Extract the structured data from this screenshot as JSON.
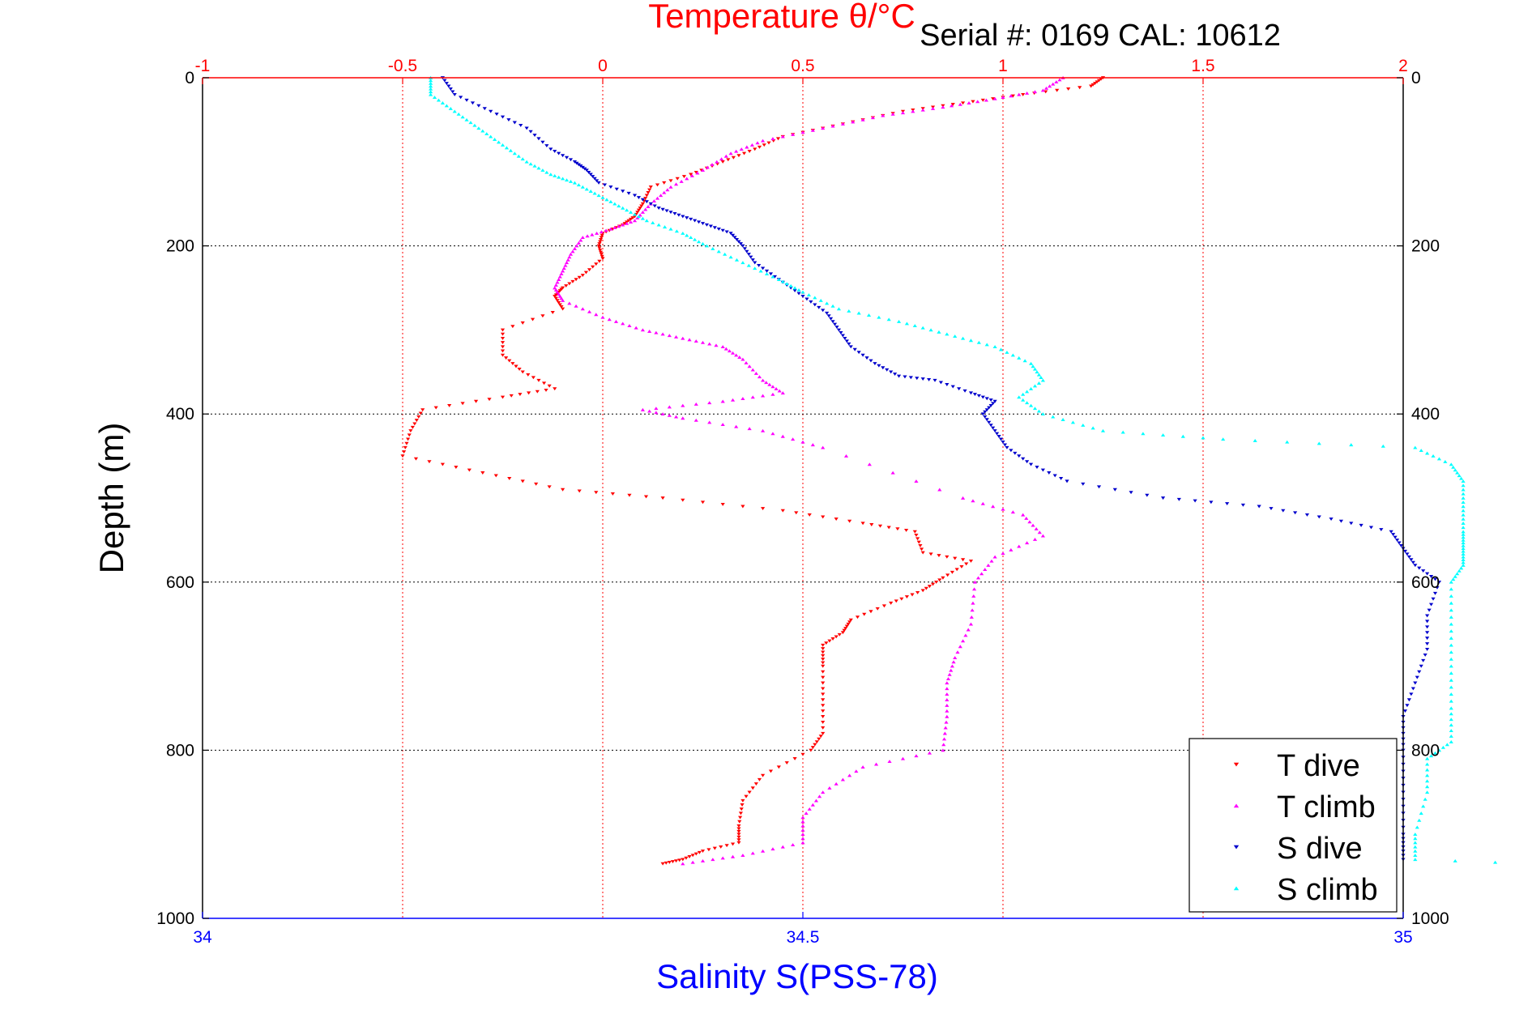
{
  "chart_data": {
    "type": "scatter",
    "title": "Temperature θ/°C",
    "subtitle": "Serial #: 0169 CAL: 10612",
    "ylabel": "Depth (m)",
    "xlabel_bottom": "Salinity S(PSS-78)",
    "xlabel_top": "Temperature θ/°C",
    "ylim": [
      0,
      1000
    ],
    "y_reversed": true,
    "x_top_lim": [
      -1,
      2
    ],
    "x_bottom_lim": [
      34,
      35
    ],
    "y_ticks": [
      0,
      200,
      400,
      600,
      800,
      1000
    ],
    "x_top_ticks": [
      -1,
      -0.5,
      0,
      0.5,
      1,
      1.5,
      2
    ],
    "x_bottom_ticks": [
      34,
      34.5,
      35
    ],
    "y_tick_labels": [
      "0",
      "200",
      "400",
      "600",
      "800",
      "1000"
    ],
    "x_top_tick_labels": [
      "-1",
      "-0.5",
      "0",
      "0.5",
      "1",
      "1.5",
      "2"
    ],
    "x_bottom_tick_labels": [
      "34",
      "34.5",
      "35"
    ],
    "grid": true,
    "legend_position": "bottom-right",
    "colors": {
      "temperature_axis": "#ff0000",
      "salinity_axis": "#0000ff",
      "text": "#000000"
    },
    "series": [
      {
        "name": "T dive",
        "axis": "temperature",
        "color": "#ff0000",
        "marker": "triangle-down",
        "points": [
          [
            1.25,
            0
          ],
          [
            1.22,
            10
          ],
          [
            1.05,
            20
          ],
          [
            0.9,
            30
          ],
          [
            0.75,
            40
          ],
          [
            0.6,
            55
          ],
          [
            0.45,
            70
          ],
          [
            0.38,
            85
          ],
          [
            0.3,
            100
          ],
          [
            0.22,
            115
          ],
          [
            0.12,
            130
          ],
          [
            0.1,
            150
          ],
          [
            0.08,
            165
          ],
          [
            0.05,
            175
          ],
          [
            0.0,
            185
          ],
          [
            -0.01,
            200
          ],
          [
            0.0,
            215
          ],
          [
            -0.05,
            235
          ],
          [
            -0.1,
            250
          ],
          [
            -0.12,
            260
          ],
          [
            -0.1,
            275
          ],
          [
            -0.25,
            300
          ],
          [
            -0.25,
            330
          ],
          [
            -0.2,
            350
          ],
          [
            -0.12,
            370
          ],
          [
            -0.25,
            380
          ],
          [
            -0.45,
            395
          ],
          [
            -0.48,
            420
          ],
          [
            -0.5,
            450
          ],
          [
            -0.3,
            470
          ],
          [
            -0.1,
            490
          ],
          [
            0.15,
            500
          ],
          [
            0.45,
            515
          ],
          [
            0.65,
            530
          ],
          [
            0.78,
            540
          ],
          [
            0.8,
            565
          ],
          [
            0.92,
            575
          ],
          [
            0.85,
            595
          ],
          [
            0.8,
            610
          ],
          [
            0.72,
            625
          ],
          [
            0.62,
            645
          ],
          [
            0.6,
            660
          ],
          [
            0.55,
            675
          ],
          [
            0.55,
            700
          ],
          [
            0.55,
            740
          ],
          [
            0.55,
            780
          ],
          [
            0.52,
            800
          ],
          [
            0.4,
            830
          ],
          [
            0.35,
            860
          ],
          [
            0.34,
            890
          ],
          [
            0.34,
            910
          ],
          [
            0.25,
            920
          ],
          [
            0.2,
            930
          ],
          [
            0.15,
            935
          ]
        ]
      },
      {
        "name": "T climb",
        "axis": "temperature",
        "color": "#ff00ff",
        "marker": "triangle-up",
        "points": [
          [
            1.15,
            0
          ],
          [
            1.1,
            15
          ],
          [
            0.98,
            25
          ],
          [
            0.85,
            35
          ],
          [
            0.7,
            45
          ],
          [
            0.55,
            60
          ],
          [
            0.4,
            75
          ],
          [
            0.32,
            90
          ],
          [
            0.25,
            110
          ],
          [
            0.17,
            130
          ],
          [
            0.12,
            150
          ],
          [
            0.08,
            170
          ],
          [
            0.02,
            180
          ],
          [
            -0.05,
            190
          ],
          [
            -0.08,
            210
          ],
          [
            -0.1,
            230
          ],
          [
            -0.12,
            250
          ],
          [
            -0.1,
            265
          ],
          [
            0.0,
            285
          ],
          [
            0.1,
            300
          ],
          [
            0.2,
            310
          ],
          [
            0.3,
            320
          ],
          [
            0.35,
            335
          ],
          [
            0.4,
            360
          ],
          [
            0.45,
            375
          ],
          [
            0.3,
            385
          ],
          [
            0.1,
            395
          ],
          [
            0.2,
            405
          ],
          [
            0.4,
            420
          ],
          [
            0.55,
            440
          ],
          [
            0.9,
            500
          ],
          [
            1.05,
            520
          ],
          [
            1.1,
            545
          ],
          [
            0.98,
            570
          ],
          [
            0.93,
            600
          ],
          [
            0.92,
            650
          ],
          [
            0.88,
            690
          ],
          [
            0.86,
            720
          ],
          [
            0.86,
            760
          ],
          [
            0.85,
            800
          ],
          [
            0.65,
            820
          ],
          [
            0.55,
            850
          ],
          [
            0.5,
            880
          ],
          [
            0.5,
            910
          ],
          [
            0.35,
            925
          ],
          [
            0.2,
            935
          ]
        ]
      },
      {
        "name": "S dive",
        "axis": "salinity",
        "color": "#0000cc",
        "marker": "triangle-down",
        "points": [
          [
            34.2,
            0
          ],
          [
            34.21,
            20
          ],
          [
            34.24,
            40
          ],
          [
            34.27,
            60
          ],
          [
            34.29,
            85
          ],
          [
            34.31,
            100
          ],
          [
            34.32,
            110
          ],
          [
            34.33,
            125
          ],
          [
            34.36,
            140
          ],
          [
            34.38,
            155
          ],
          [
            34.4,
            165
          ],
          [
            34.42,
            175
          ],
          [
            34.44,
            185
          ],
          [
            34.45,
            200
          ],
          [
            34.46,
            220
          ],
          [
            34.48,
            240
          ],
          [
            34.5,
            260
          ],
          [
            34.52,
            280
          ],
          [
            34.53,
            300
          ],
          [
            34.54,
            320
          ],
          [
            34.56,
            340
          ],
          [
            34.58,
            355
          ],
          [
            34.61,
            360
          ],
          [
            34.64,
            375
          ],
          [
            34.66,
            385
          ],
          [
            34.65,
            400
          ],
          [
            34.66,
            420
          ],
          [
            34.67,
            440
          ],
          [
            34.69,
            460
          ],
          [
            34.72,
            480
          ],
          [
            34.8,
            500
          ],
          [
            34.88,
            510
          ],
          [
            34.94,
            525
          ],
          [
            34.99,
            540
          ],
          [
            35.0,
            560
          ],
          [
            35.01,
            580
          ],
          [
            35.03,
            600
          ],
          [
            35.02,
            640
          ],
          [
            35.02,
            680
          ],
          [
            35.01,
            720
          ],
          [
            35.0,
            760
          ],
          [
            35.0,
            800
          ],
          [
            35.0,
            850
          ],
          [
            35.0,
            900
          ],
          [
            35.0,
            930
          ]
        ]
      },
      {
        "name": "S climb",
        "axis": "salinity",
        "color": "#00ffff",
        "marker": "triangle-up",
        "points": [
          [
            34.19,
            0
          ],
          [
            34.19,
            20
          ],
          [
            34.21,
            40
          ],
          [
            34.23,
            60
          ],
          [
            34.25,
            80
          ],
          [
            34.27,
            100
          ],
          [
            34.29,
            115
          ],
          [
            34.31,
            125
          ],
          [
            34.33,
            140
          ],
          [
            34.35,
            155
          ],
          [
            34.37,
            170
          ],
          [
            34.4,
            185
          ],
          [
            34.42,
            200
          ],
          [
            34.45,
            220
          ],
          [
            34.48,
            240
          ],
          [
            34.5,
            255
          ],
          [
            34.53,
            275
          ],
          [
            34.58,
            290
          ],
          [
            34.62,
            305
          ],
          [
            34.66,
            320
          ],
          [
            34.69,
            340
          ],
          [
            34.7,
            360
          ],
          [
            34.68,
            380
          ],
          [
            34.7,
            400
          ],
          [
            34.75,
            420
          ],
          [
            34.85,
            430
          ],
          [
            35.01,
            440
          ],
          [
            35.04,
            460
          ],
          [
            35.05,
            480
          ],
          [
            35.05,
            510
          ],
          [
            35.05,
            540
          ],
          [
            35.05,
            560
          ],
          [
            35.05,
            580
          ],
          [
            35.04,
            600
          ],
          [
            35.04,
            650
          ],
          [
            35.04,
            700
          ],
          [
            35.04,
            750
          ],
          [
            35.04,
            790
          ],
          [
            35.02,
            810
          ],
          [
            35.02,
            850
          ],
          [
            35.01,
            900
          ],
          [
            35.01,
            930
          ],
          [
            35.21,
            940
          ]
        ]
      }
    ]
  }
}
